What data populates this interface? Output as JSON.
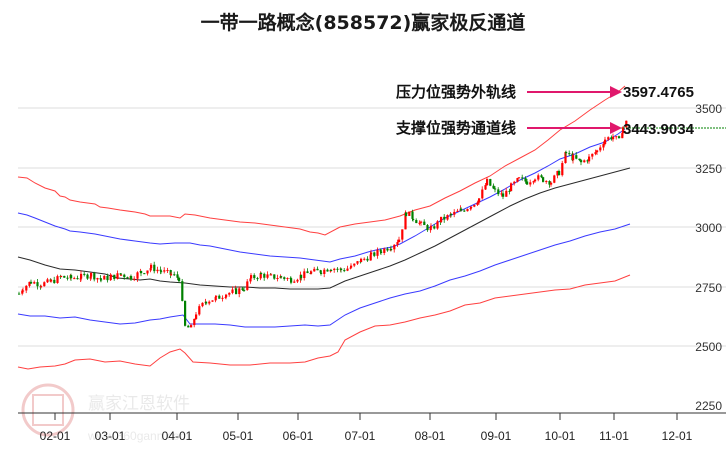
{
  "title": "一带一路概念(858572)赢家极反通道",
  "watermark": {
    "brand": "赢家江恩软件",
    "url": "www.360gann.com",
    "seal_chars": [
      "江",
      "赢",
      "恩",
      "家"
    ]
  },
  "annotations": [
    {
      "label": "压力位强势外轨线",
      "value": "3597.4765",
      "arrow_color": "#e0186c"
    },
    {
      "label": "支撑位强势通道线",
      "value": "3443.9034",
      "arrow_color": "#e0186c"
    }
  ],
  "colors": {
    "up_candle": "#ff0000",
    "down_candle": "#008000",
    "outer_band": "#ff3333",
    "inner_band": "#3333ff",
    "mid_line": "#222222",
    "support_hline": "#008000",
    "grid": "#dddddd",
    "axis": "#333333"
  },
  "chart_data": {
    "type": "candlestick",
    "title": "一带一路概念(858572)赢家极反通道",
    "xlabel": "",
    "ylabel": "",
    "ylim": [
      2250,
      3650
    ],
    "yticks": [
      2250,
      2500,
      2750,
      3000,
      3250,
      3500
    ],
    "xticks": [
      "02-01",
      "03-01",
      "04-01",
      "05-01",
      "06-01",
      "07-01",
      "08-01",
      "09-01",
      "10-01",
      "11-01",
      "12-01"
    ],
    "grid": true,
    "series": [
      {
        "name": "outer_upper_band",
        "color": "red",
        "x": [
          "01-20",
          "02-01",
          "02-15",
          "03-01",
          "03-15",
          "04-01",
          "04-15",
          "05-01",
          "05-15",
          "06-01",
          "06-15",
          "07-01",
          "07-15",
          "08-01",
          "08-15",
          "09-01",
          "09-15",
          "10-01",
          "10-15",
          "11-01",
          "11-10"
        ],
        "values": [
          3260,
          3215,
          3165,
          3120,
          3085,
          3050,
          3055,
          3025,
          3005,
          2990,
          2965,
          2975,
          3000,
          3050,
          3120,
          3190,
          3250,
          3330,
          3400,
          3480,
          3560
        ]
      },
      {
        "name": "inner_upper_band",
        "color": "blue",
        "x": [
          "01-20",
          "02-01",
          "02-15",
          "03-01",
          "03-15",
          "04-01",
          "04-15",
          "05-01",
          "05-15",
          "06-01",
          "06-15",
          "07-01",
          "07-15",
          "08-01",
          "08-15",
          "09-01",
          "09-15",
          "10-01",
          "10-15",
          "11-01",
          "11-10"
        ],
        "values": [
          3110,
          3065,
          3025,
          2995,
          2970,
          2950,
          2950,
          2930,
          2915,
          2905,
          2895,
          2905,
          2930,
          2985,
          3050,
          3120,
          3180,
          3250,
          3310,
          3380,
          3440
        ]
      },
      {
        "name": "middle_line",
        "color": "black",
        "x": [
          "01-20",
          "02-01",
          "02-15",
          "03-01",
          "03-15",
          "04-01",
          "04-15",
          "05-01",
          "05-15",
          "06-01",
          "06-15",
          "07-01",
          "07-15",
          "08-01",
          "08-15",
          "09-01",
          "09-15",
          "10-01",
          "10-15",
          "11-01",
          "11-10"
        ],
        "values": [
          2890,
          2860,
          2835,
          2830,
          2815,
          2800,
          2790,
          2775,
          2760,
          2755,
          2750,
          2760,
          2790,
          2850,
          2920,
          2990,
          3060,
          3130,
          3180,
          3230,
          3270
        ]
      },
      {
        "name": "inner_lower_band",
        "color": "blue",
        "x": [
          "01-20",
          "02-01",
          "02-15",
          "03-01",
          "03-15",
          "04-01",
          "04-15",
          "05-01",
          "05-15",
          "06-01",
          "06-15",
          "07-01",
          "07-15",
          "08-01",
          "08-15",
          "09-01",
          "09-15",
          "10-01",
          "10-15",
          "11-01",
          "11-10"
        ],
        "values": [
          2660,
          2650,
          2650,
          2640,
          2620,
          2640,
          2575,
          2570,
          2565,
          2570,
          2575,
          2590,
          2660,
          2720,
          2790,
          2840,
          2890,
          2940,
          2970,
          3000,
          3030
        ]
      },
      {
        "name": "outer_lower_band",
        "color": "red",
        "x": [
          "01-20",
          "02-01",
          "02-15",
          "03-01",
          "03-15",
          "04-01",
          "04-15",
          "05-01",
          "05-15",
          "06-01",
          "06-15",
          "07-01",
          "07-15",
          "08-01",
          "08-15",
          "09-01",
          "09-15",
          "10-01",
          "10-15",
          "11-01",
          "11-10"
        ],
        "values": [
          2465,
          2475,
          2480,
          2465,
          2470,
          2530,
          2460,
          2455,
          2460,
          2475,
          2480,
          2510,
          2610,
          2660,
          2690,
          2710,
          2740,
          2770,
          2790,
          2800,
          2830
        ]
      },
      {
        "name": "close_approx",
        "color": "candles",
        "x": [
          "01-20",
          "02-01",
          "02-15",
          "03-01",
          "03-15",
          "04-01",
          "04-05",
          "04-15",
          "05-01",
          "05-15",
          "06-01",
          "06-15",
          "07-01",
          "07-15",
          "07-25",
          "08-01",
          "08-15",
          "09-01",
          "09-15",
          "10-01",
          "10-15",
          "11-01",
          "11-10"
        ],
        "values": [
          2720,
          2790,
          2800,
          2780,
          2860,
          2800,
          2560,
          2710,
          2760,
          2840,
          2810,
          2840,
          2880,
          2960,
          3100,
          2990,
          3100,
          3180,
          3150,
          3270,
          3320,
          3370,
          3440
        ]
      }
    ],
    "annotations": [
      {
        "text": "压力位强势外轨线",
        "value": 3597.4765
      },
      {
        "text": "支撑位强势通道线",
        "value": 3443.9034
      }
    ]
  }
}
